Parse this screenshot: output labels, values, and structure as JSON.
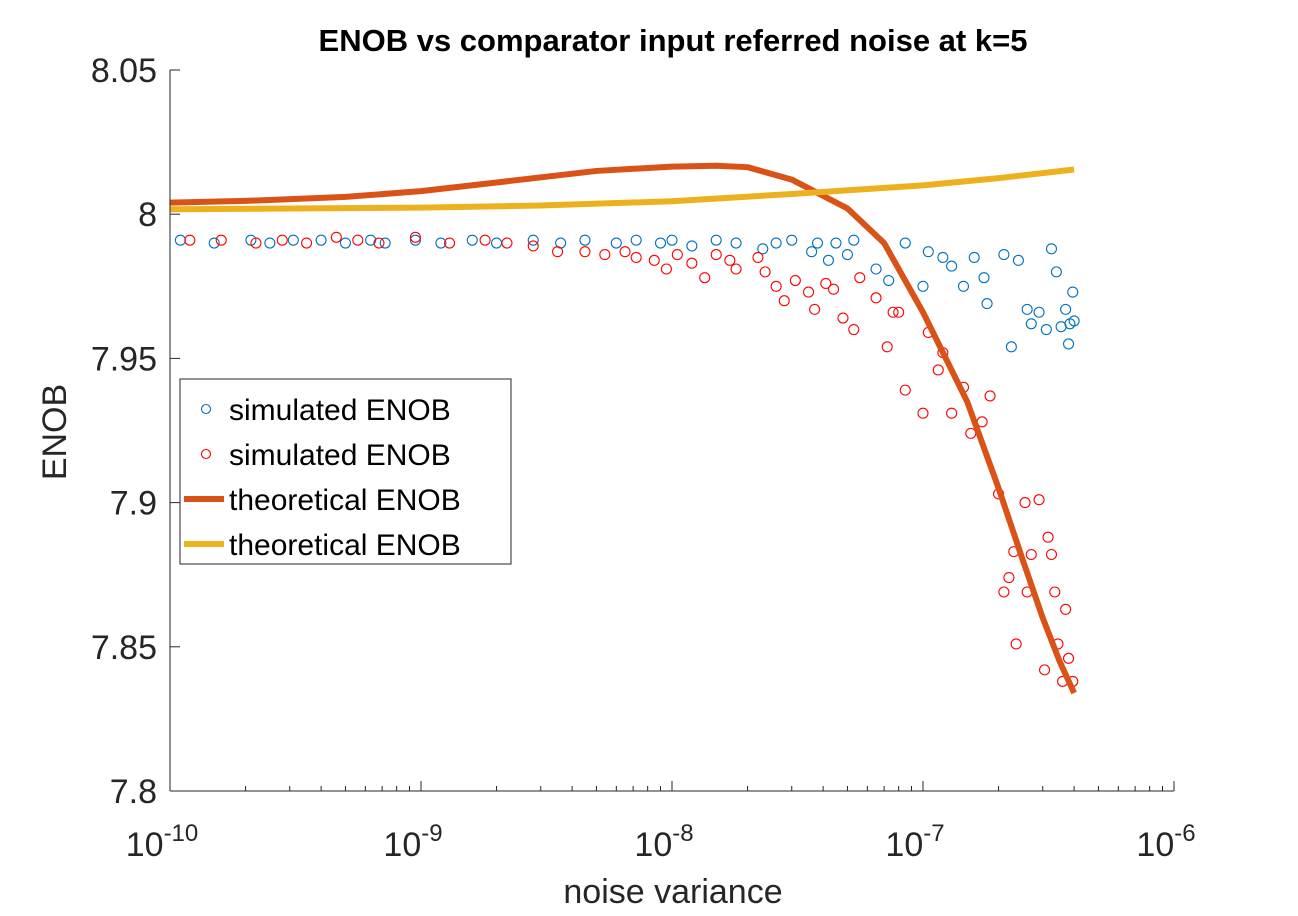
{
  "chart_data": {
    "type": "scatter",
    "title": "ENOB vs comparator input referred noise at k=5",
    "xlabel": "noise variance",
    "ylabel": "ENOB",
    "xscale": "log",
    "xlim": [
      1e-10,
      1e-06
    ],
    "ylim": [
      7.8,
      8.05
    ],
    "xticks": [
      {
        "base": "10",
        "exp": "-10",
        "value": 1e-10
      },
      {
        "base": "10",
        "exp": "-9",
        "value": 1e-09
      },
      {
        "base": "10",
        "exp": "-8",
        "value": 1e-08
      },
      {
        "base": "10",
        "exp": "-7",
        "value": 1e-07
      },
      {
        "base": "10",
        "exp": "-6",
        "value": 1e-06
      }
    ],
    "yticks": [
      "7.8",
      "7.85",
      "7.9",
      "7.95",
      "8",
      "8.05"
    ],
    "grid": false,
    "legend_position": "middle-left",
    "series": [
      {
        "name": "simulated ENOB",
        "kind": "scatter",
        "marker": "circle-open",
        "color": "#0072BD",
        "points": [
          [
            1.1e-10,
            7.991
          ],
          [
            1.5e-10,
            7.99
          ],
          [
            2.1e-10,
            7.991
          ],
          [
            2.5e-10,
            7.99
          ],
          [
            3.1e-10,
            7.991
          ],
          [
            4e-10,
            7.991
          ],
          [
            5e-10,
            7.99
          ],
          [
            6.3e-10,
            7.991
          ],
          [
            7.2e-10,
            7.99
          ],
          [
            9.5e-10,
            7.991
          ],
          [
            1.2e-09,
            7.99
          ],
          [
            1.6e-09,
            7.991
          ],
          [
            2e-09,
            7.99
          ],
          [
            2.8e-09,
            7.991
          ],
          [
            3.6e-09,
            7.99
          ],
          [
            4.5e-09,
            7.991
          ],
          [
            6e-09,
            7.99
          ],
          [
            7.2e-09,
            7.991
          ],
          [
            9e-09,
            7.99
          ],
          [
            1e-08,
            7.991
          ],
          [
            1.2e-08,
            7.989
          ],
          [
            1.5e-08,
            7.991
          ],
          [
            1.8e-08,
            7.99
          ],
          [
            2.3e-08,
            7.988
          ],
          [
            2.6e-08,
            7.99
          ],
          [
            3e-08,
            7.991
          ],
          [
            3.6e-08,
            7.987
          ],
          [
            3.8e-08,
            7.99
          ],
          [
            4.2e-08,
            7.984
          ],
          [
            4.5e-08,
            7.99
          ],
          [
            5e-08,
            7.986
          ],
          [
            5.3e-08,
            7.991
          ],
          [
            6.5e-08,
            7.981
          ],
          [
            7.3e-08,
            7.977
          ],
          [
            8.5e-08,
            7.99
          ],
          [
            1e-07,
            7.975
          ],
          [
            1.05e-07,
            7.987
          ],
          [
            1.2e-07,
            7.985
          ],
          [
            1.3e-07,
            7.982
          ],
          [
            1.45e-07,
            7.975
          ],
          [
            1.6e-07,
            7.985
          ],
          [
            1.75e-07,
            7.978
          ],
          [
            1.8e-07,
            7.969
          ],
          [
            2.1e-07,
            7.986
          ],
          [
            2.25e-07,
            7.954
          ],
          [
            2.4e-07,
            7.984
          ],
          [
            2.6e-07,
            7.967
          ],
          [
            2.7e-07,
            7.962
          ],
          [
            2.9e-07,
            7.966
          ],
          [
            3.1e-07,
            7.96
          ],
          [
            3.25e-07,
            7.988
          ],
          [
            3.4e-07,
            7.98
          ],
          [
            3.55e-07,
            7.961
          ],
          [
            3.7e-07,
            7.967
          ],
          [
            3.8e-07,
            7.955
          ],
          [
            3.85e-07,
            7.962
          ],
          [
            3.95e-07,
            7.973
          ],
          [
            4e-07,
            7.963
          ]
        ]
      },
      {
        "name": "simulated ENOB",
        "kind": "scatter",
        "marker": "circle-open",
        "color": "#FF0000",
        "points": [
          [
            1.2e-10,
            7.991
          ],
          [
            1.6e-10,
            7.991
          ],
          [
            2.2e-10,
            7.99
          ],
          [
            2.8e-10,
            7.991
          ],
          [
            3.5e-10,
            7.99
          ],
          [
            4.6e-10,
            7.992
          ],
          [
            5.6e-10,
            7.991
          ],
          [
            6.8e-10,
            7.99
          ],
          [
            9.5e-10,
            7.992
          ],
          [
            1.3e-09,
            7.99
          ],
          [
            1.8e-09,
            7.991
          ],
          [
            2.2e-09,
            7.99
          ],
          [
            2.8e-09,
            7.989
          ],
          [
            3.5e-09,
            7.987
          ],
          [
            4.5e-09,
            7.987
          ],
          [
            5.4e-09,
            7.986
          ],
          [
            6.5e-09,
            7.987
          ],
          [
            7.2e-09,
            7.985
          ],
          [
            8.5e-09,
            7.984
          ],
          [
            9.5e-09,
            7.981
          ],
          [
            1.05e-08,
            7.986
          ],
          [
            1.2e-08,
            7.983
          ],
          [
            1.35e-08,
            7.978
          ],
          [
            1.5e-08,
            7.986
          ],
          [
            1.7e-08,
            7.984
          ],
          [
            1.8e-08,
            7.981
          ],
          [
            2.2e-08,
            7.985
          ],
          [
            2.35e-08,
            7.98
          ],
          [
            2.6e-08,
            7.975
          ],
          [
            2.8e-08,
            7.97
          ],
          [
            3.1e-08,
            7.977
          ],
          [
            3.5e-08,
            7.973
          ],
          [
            3.7e-08,
            7.967
          ],
          [
            4.1e-08,
            7.976
          ],
          [
            4.4e-08,
            7.974
          ],
          [
            4.8e-08,
            7.964
          ],
          [
            5.3e-08,
            7.96
          ],
          [
            5.6e-08,
            7.978
          ],
          [
            6.5e-08,
            7.971
          ],
          [
            7.2e-08,
            7.954
          ],
          [
            7.6e-08,
            7.966
          ],
          [
            8e-08,
            7.966
          ],
          [
            8.5e-08,
            7.939
          ],
          [
            1e-07,
            7.931
          ],
          [
            1.05e-07,
            7.959
          ],
          [
            1.15e-07,
            7.946
          ],
          [
            1.2e-07,
            7.952
          ],
          [
            1.3e-07,
            7.931
          ],
          [
            1.45e-07,
            7.94
          ],
          [
            1.55e-07,
            7.924
          ],
          [
            1.72e-07,
            7.928
          ],
          [
            1.85e-07,
            7.937
          ],
          [
            2e-07,
            7.903
          ],
          [
            2.1e-07,
            7.869
          ],
          [
            2.2e-07,
            7.874
          ],
          [
            2.3e-07,
            7.883
          ],
          [
            2.35e-07,
            7.851
          ],
          [
            2.55e-07,
            7.9
          ],
          [
            2.6e-07,
            7.869
          ],
          [
            2.7e-07,
            7.882
          ],
          [
            2.9e-07,
            7.901
          ],
          [
            3.05e-07,
            7.842
          ],
          [
            3.15e-07,
            7.888
          ],
          [
            3.25e-07,
            7.882
          ],
          [
            3.35e-07,
            7.869
          ],
          [
            3.45e-07,
            7.851
          ],
          [
            3.6e-07,
            7.838
          ],
          [
            3.7e-07,
            7.863
          ],
          [
            3.8e-07,
            7.846
          ],
          [
            3.95e-07,
            7.838
          ]
        ]
      },
      {
        "name": "theoretical ENOB",
        "kind": "line",
        "color": "#D95319",
        "points": [
          [
            1e-10,
            8.004
          ],
          [
            2e-10,
            8.0046
          ],
          [
            5e-10,
            8.006
          ],
          [
            1e-09,
            8.008
          ],
          [
            2e-09,
            8.011
          ],
          [
            5e-09,
            8.015
          ],
          [
            1e-08,
            8.0165
          ],
          [
            1.5e-08,
            8.0168
          ],
          [
            2e-08,
            8.0163
          ],
          [
            3e-08,
            8.012
          ],
          [
            5e-08,
            8.002
          ],
          [
            7e-08,
            7.99
          ],
          [
            1e-07,
            7.966
          ],
          [
            1.5e-07,
            7.935
          ],
          [
            2e-07,
            7.905
          ],
          [
            2.5e-07,
            7.88
          ],
          [
            3e-07,
            7.86
          ],
          [
            3.5e-07,
            7.845
          ],
          [
            4e-07,
            7.834
          ]
        ]
      },
      {
        "name": "theoretical ENOB",
        "kind": "line",
        "color": "#EDB120",
        "points": [
          [
            1e-10,
            8.0017
          ],
          [
            1e-09,
            8.0023
          ],
          [
            3e-09,
            8.003
          ],
          [
            1e-08,
            8.0045
          ],
          [
            3e-08,
            8.007
          ],
          [
            1e-07,
            8.01
          ],
          [
            2e-07,
            8.0125
          ],
          [
            4e-07,
            8.0155
          ]
        ]
      }
    ]
  }
}
